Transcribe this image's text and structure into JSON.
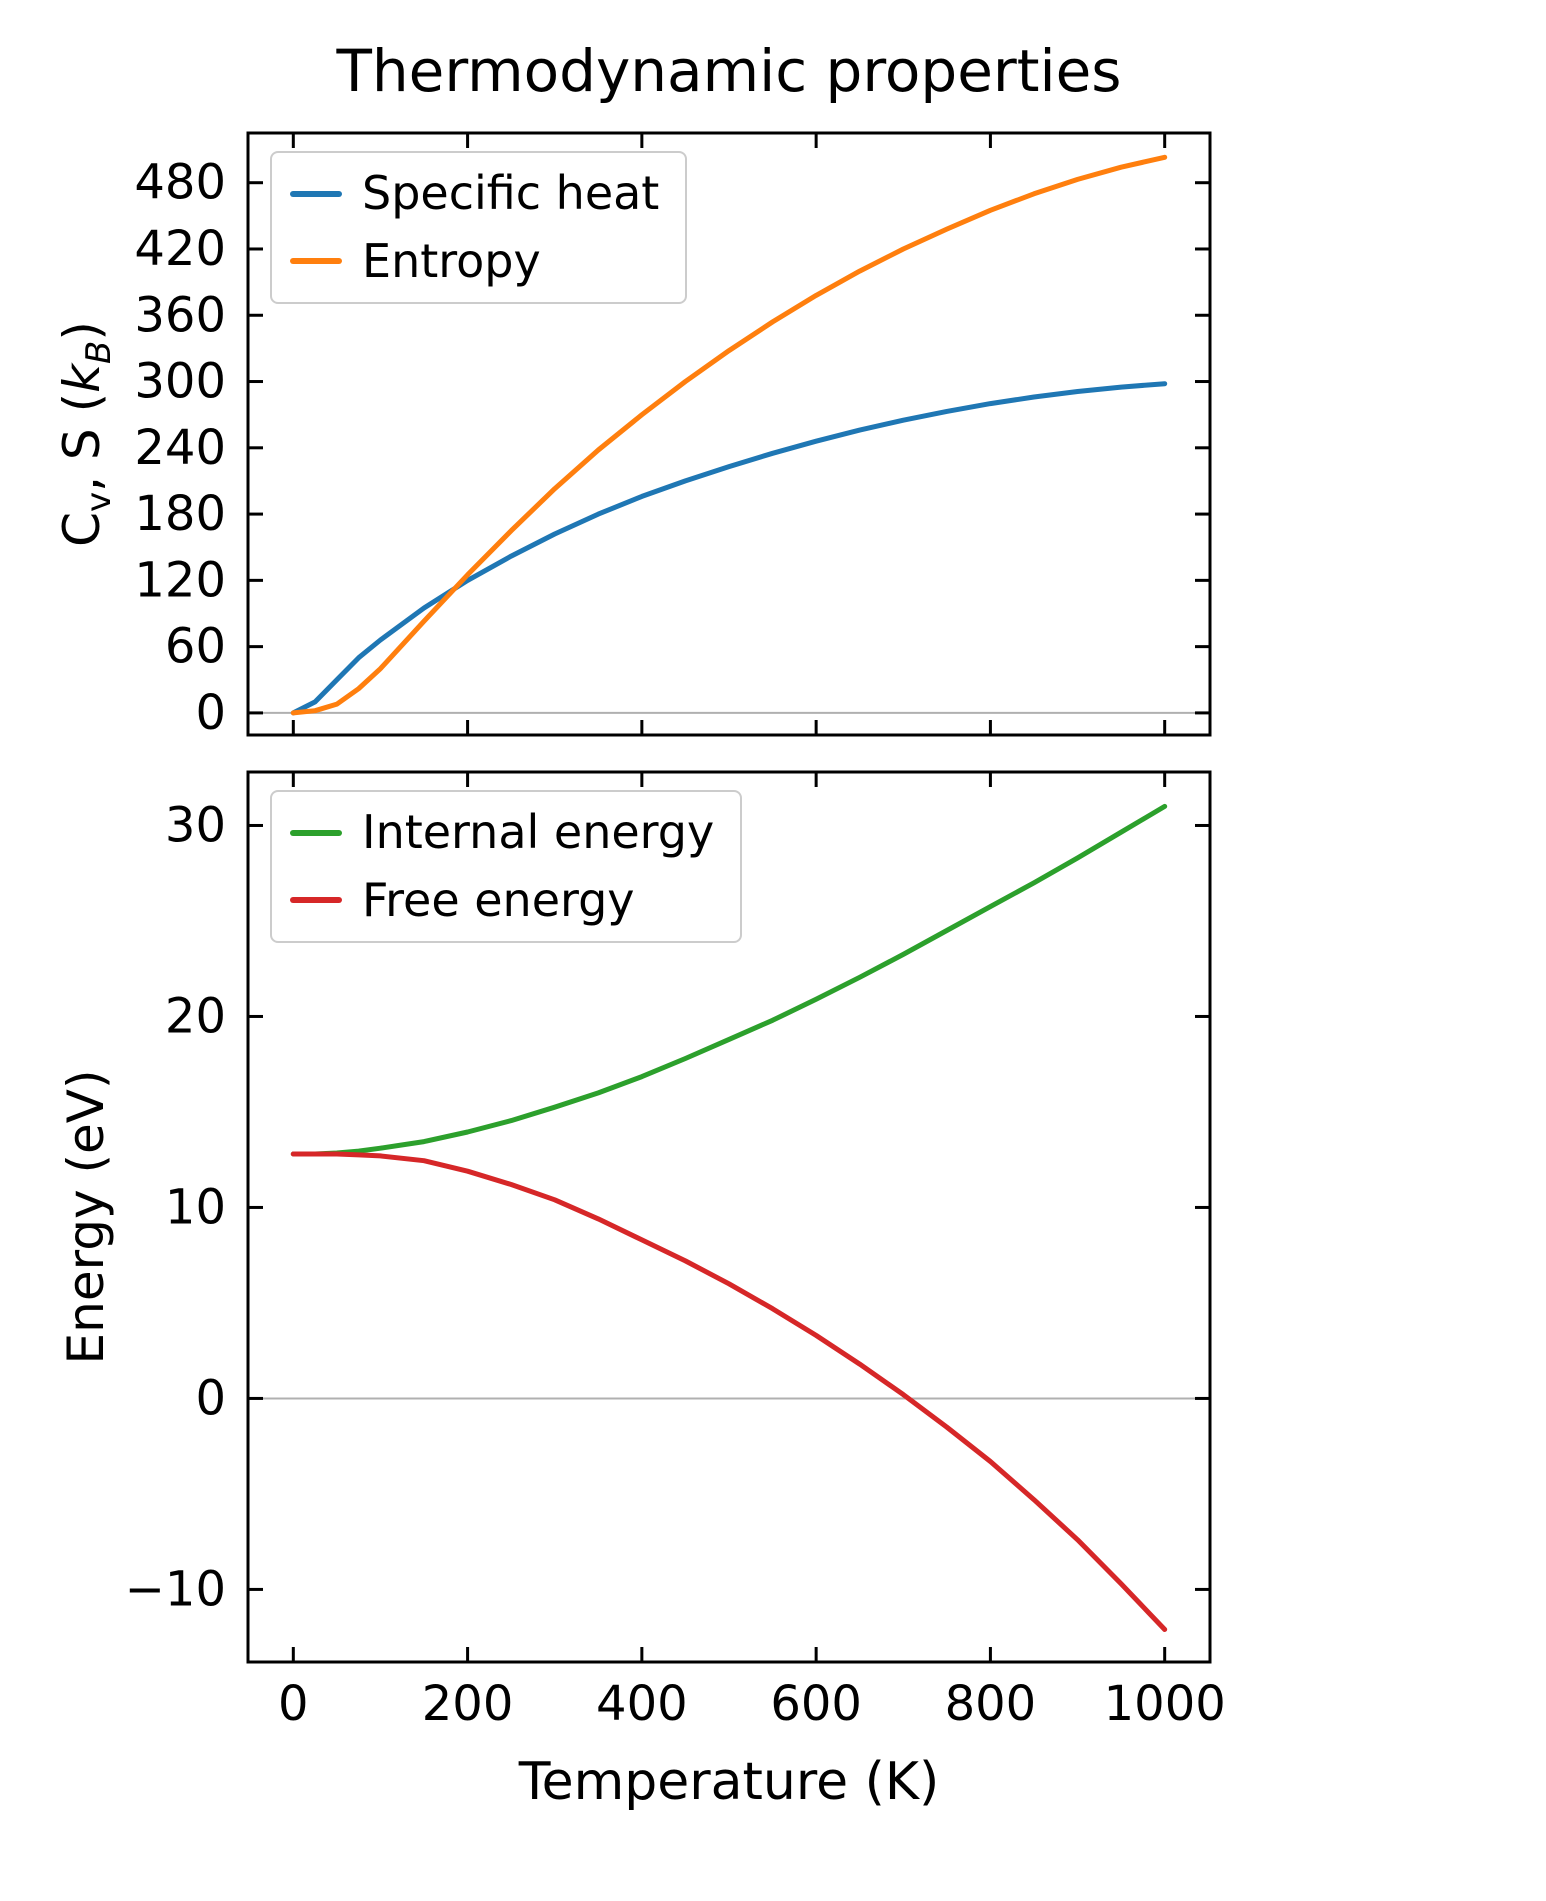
{
  "figure": {
    "title": "Thermodynamic properties",
    "background": "#ffffff",
    "spine_color": "#000000",
    "zero_line_color": "#b0b0b0"
  },
  "top_ylabel_parts": {
    "p1": "C",
    "sub1": "v",
    "p2": ", S (",
    "it": "k",
    "sub2": "B",
    "p3": ")"
  },
  "chart_data": [
    {
      "type": "line",
      "title": "Thermodynamic properties",
      "xlabel": "",
      "ylabel": "Cv, S (kB)",
      "xlim": [
        -52,
        1052
      ],
      "ylim": [
        -20,
        525
      ],
      "xticks": [
        0,
        200,
        400,
        600,
        800,
        1000
      ],
      "xticklabels": [
        "0",
        "200",
        "400",
        "600",
        "800",
        "1000"
      ],
      "show_xtick_labels": false,
      "yticks": [
        0,
        60,
        120,
        180,
        240,
        300,
        360,
        420,
        480
      ],
      "yticklabels": [
        "0",
        "60",
        "120",
        "180",
        "240",
        "300",
        "360",
        "420",
        "480"
      ],
      "grid": false,
      "zero_line": true,
      "legend_position": "upper left",
      "x": [
        0,
        25,
        50,
        75,
        100,
        150,
        200,
        250,
        300,
        350,
        400,
        450,
        500,
        550,
        600,
        650,
        700,
        750,
        800,
        850,
        900,
        950,
        1000
      ],
      "series": [
        {
          "name": "Specific heat",
          "color": "#1f77b4",
          "values": [
            0,
            10,
            30,
            50,
            66,
            95,
            120,
            142,
            162,
            180,
            196,
            210,
            223,
            235,
            246,
            256,
            265,
            273,
            280,
            286,
            291,
            295,
            298
          ]
        },
        {
          "name": "Entropy",
          "color": "#ff7f0e",
          "values": [
            0,
            2,
            8,
            22,
            40,
            83,
            125,
            165,
            203,
            238,
            270,
            300,
            328,
            354,
            378,
            400,
            420,
            438,
            455,
            470,
            483,
            494,
            503
          ]
        }
      ]
    },
    {
      "type": "line",
      "title": "",
      "xlabel": "Temperature (K)",
      "ylabel": "Energy (eV)",
      "xlim": [
        -52,
        1052
      ],
      "ylim": [
        -13.8,
        32.8
      ],
      "xticks": [
        0,
        200,
        400,
        600,
        800,
        1000
      ],
      "xticklabels": [
        "0",
        "200",
        "400",
        "600",
        "800",
        "1000"
      ],
      "show_xtick_labels": true,
      "yticks": [
        -10,
        0,
        10,
        20,
        30
      ],
      "yticklabels": [
        "−10",
        "0",
        "10",
        "20",
        "30"
      ],
      "grid": false,
      "zero_line": true,
      "legend_position": "upper left",
      "x": [
        0,
        25,
        50,
        75,
        100,
        150,
        200,
        250,
        300,
        350,
        400,
        450,
        500,
        550,
        600,
        650,
        700,
        750,
        800,
        850,
        900,
        950,
        1000
      ],
      "series": [
        {
          "name": "Internal energy",
          "color": "#2ca02c",
          "values": [
            12.8,
            12.8,
            12.85,
            12.95,
            13.1,
            13.45,
            13.95,
            14.55,
            15.25,
            16.0,
            16.85,
            17.8,
            18.8,
            19.8,
            20.9,
            22.05,
            23.25,
            24.5,
            25.75,
            27.0,
            28.3,
            29.65,
            31.0
          ]
        },
        {
          "name": "Free energy",
          "color": "#d62728",
          "values": [
            12.8,
            12.8,
            12.8,
            12.75,
            12.7,
            12.45,
            11.9,
            11.2,
            10.4,
            9.4,
            8.3,
            7.2,
            6.0,
            4.7,
            3.3,
            1.8,
            0.2,
            -1.5,
            -3.3,
            -5.3,
            -7.4,
            -9.7,
            -12.1
          ]
        }
      ]
    }
  ]
}
